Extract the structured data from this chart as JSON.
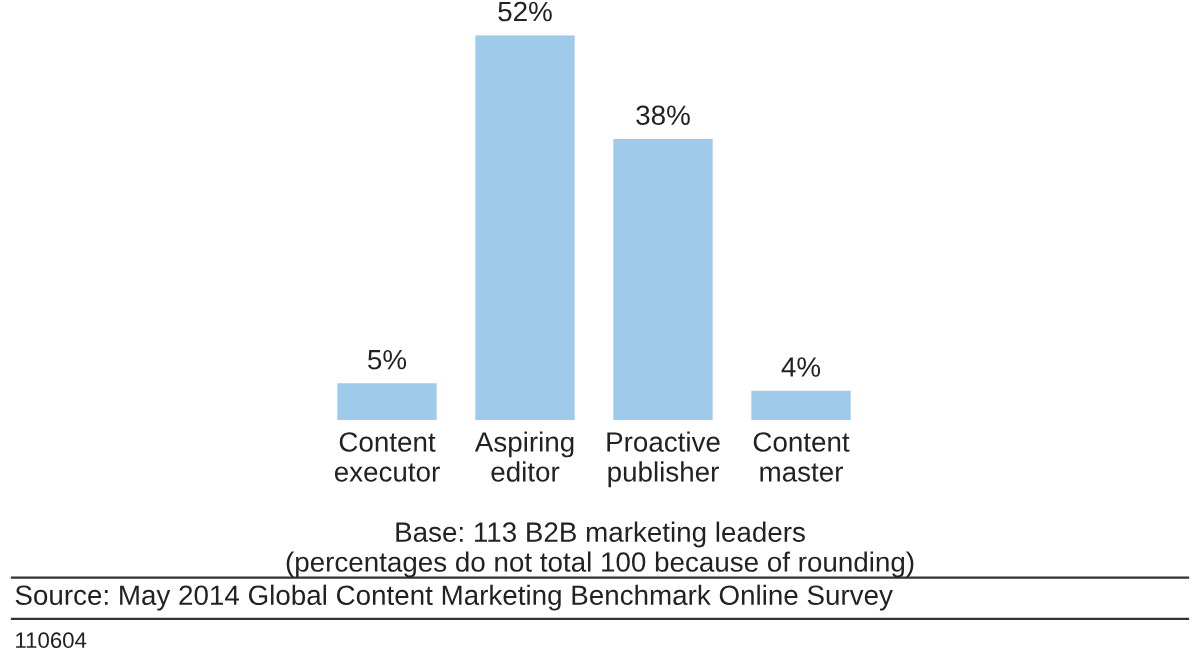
{
  "chart_data": {
    "type": "bar",
    "categories": [
      "Content executor",
      "Aspiring editor",
      "Proactive publisher",
      "Content master"
    ],
    "values": [
      5,
      52,
      38,
      4
    ],
    "color": "#9fcbea",
    "data_labels": true,
    "value_labels": [
      "5%",
      "52%",
      "38%",
      "4%"
    ],
    "grid": false,
    "legend": false,
    "annotations": [
      "Base: 113 B2B marketing leaders",
      "(percentages do not total 100 because of rounding)",
      "Source: May 2014 Global Content Marketing Benchmark Online Survey",
      "110604"
    ]
  }
}
